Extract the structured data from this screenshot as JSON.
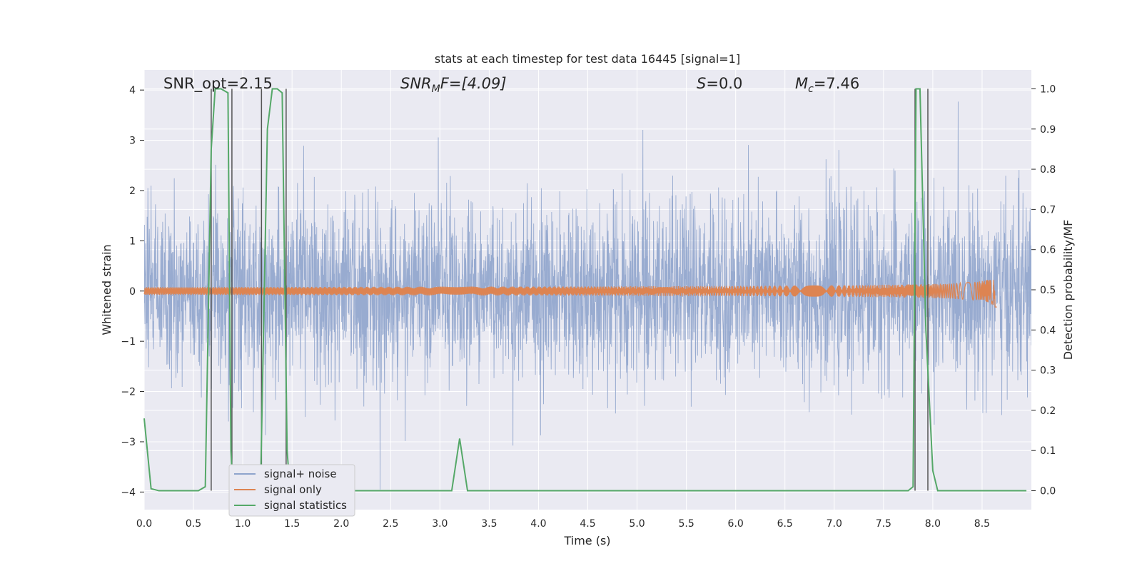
{
  "colors": {
    "background": "#ffffff",
    "plot_area": "#eaeaf2",
    "grid": "#ffffff",
    "signal_noise": "#8fa4cc",
    "signal_only": "#dd8452",
    "signal_statistics": "#55a868",
    "vertical_markers": "#555555",
    "text": "#262626"
  },
  "chart_data": {
    "type": "line",
    "title": "stats at each timestep for test data 16445 [signal=1]",
    "xlabel": "Time (s)",
    "ylabel": "Whitened strain",
    "y2label": "Detection probability/MF",
    "xlim": [
      0.0,
      9.0
    ],
    "ylim": [
      -4.35,
      4.4
    ],
    "y2lim": [
      -0.047,
      1.047
    ],
    "grid": true,
    "legend_position": "lower-left",
    "x_ticks": [
      "0.0",
      "0.5",
      "1.0",
      "1.5",
      "2.0",
      "2.5",
      "3.0",
      "3.5",
      "4.0",
      "4.5",
      "5.0",
      "5.5",
      "6.0",
      "6.5",
      "7.0",
      "7.5",
      "8.0",
      "8.5"
    ],
    "y_ticks": [
      "4",
      "3",
      "2",
      "1",
      "0",
      "−1",
      "−2",
      "−3",
      "−4"
    ],
    "y2_ticks": [
      "1.0",
      "0.9",
      "0.8",
      "0.7",
      "0.6",
      "0.5",
      "0.4",
      "0.3",
      "0.2",
      "0.1",
      "0.0"
    ],
    "annotations": {
      "snr_opt": "SNR_opt=2.15",
      "snr_mf_main": "SNR",
      "snr_mf_sub": "M",
      "snr_mf_rest": "F=[4.09]",
      "s_main": "S",
      "s_rest": "=0.0",
      "mc_main": "M",
      "mc_sub": "c",
      "mc_rest": "=7.46"
    },
    "series": [
      {
        "name": "signal+ noise",
        "description_type": "noisy strain, approx Gaussian, std ~0.8",
        "x_range": [
          0.0,
          9.0
        ],
        "std": 0.8
      },
      {
        "name": "signal only",
        "description_type": "chirp growing in amplitude toward merger",
        "x_range": [
          0.0,
          8.65
        ],
        "peak_amplitude": 0.35
      },
      {
        "name": "signal statistics",
        "axis": "right",
        "x": [
          0.0,
          0.07,
          0.15,
          0.55,
          0.62,
          0.68,
          0.72,
          0.78,
          0.85,
          0.88,
          0.9,
          1.05,
          1.18,
          1.25,
          1.3,
          1.35,
          1.4,
          1.45,
          1.48,
          1.5,
          1.6,
          3.0,
          3.12,
          3.2,
          3.28,
          3.35,
          7.75,
          7.8,
          7.83,
          7.87,
          7.93,
          8.0,
          8.05,
          8.08,
          8.95
        ],
        "y": [
          0.18,
          0.005,
          0.0,
          0.0,
          0.01,
          0.85,
          1.0,
          1.0,
          0.99,
          0.1,
          0.0,
          0.0,
          0.0,
          0.9,
          1.0,
          1.0,
          0.99,
          0.1,
          0.0,
          0.0,
          0.0,
          0.0,
          0.0,
          0.13,
          0.0,
          0.0,
          0.0,
          0.01,
          1.0,
          1.0,
          0.4,
          0.05,
          0.0,
          0.0,
          0.0
        ]
      }
    ],
    "vertical_markers_x": [
      0.68,
      0.89,
      1.19,
      1.44,
      7.82,
      7.95
    ]
  }
}
